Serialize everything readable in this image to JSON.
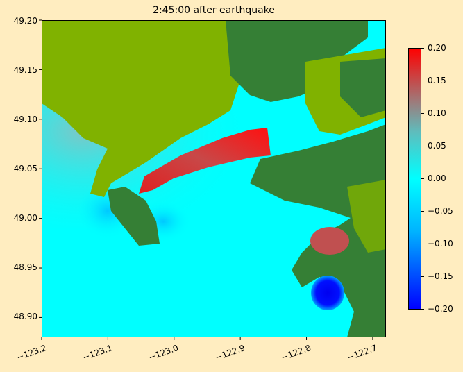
{
  "chart_data": {
    "type": "heatmap",
    "title": "2:45:00 after earthquake",
    "xlabel": "",
    "ylabel": "",
    "xlim": [
      -123.2,
      -122.68
    ],
    "ylim": [
      48.88,
      49.2
    ],
    "xticks": [
      "−123.2",
      "−123.1",
      "−123.0",
      "−122.9",
      "−122.8",
      "−122.7"
    ],
    "xtick_values": [
      -123.2,
      -123.1,
      -123.0,
      -122.9,
      -122.8,
      -122.7
    ],
    "yticks": [
      "49.20",
      "49.15",
      "49.10",
      "49.05",
      "49.00",
      "48.95",
      "48.90"
    ],
    "ytick_values": [
      49.2,
      49.15,
      49.1,
      49.05,
      49.0,
      48.95,
      48.9
    ],
    "colorbar": {
      "clim": [
        -0.2,
        0.2
      ],
      "ticks": [
        "0.20",
        "0.15",
        "0.10",
        "0.05",
        "0.00",
        "−0.05",
        "−0.10",
        "−0.15",
        "−0.20"
      ],
      "tick_values": [
        0.2,
        0.15,
        0.1,
        0.05,
        0.0,
        -0.05,
        -0.1,
        -0.15,
        -0.2
      ],
      "colors": [
        "#0000ff",
        "#00b4ff",
        "#00ffff",
        "#5fbcbc",
        "#a07878",
        "#ff0000"
      ]
    },
    "land_colors": {
      "lowland": "#80b200",
      "upland": "#357f35"
    },
    "background": "#ffedc0"
  }
}
